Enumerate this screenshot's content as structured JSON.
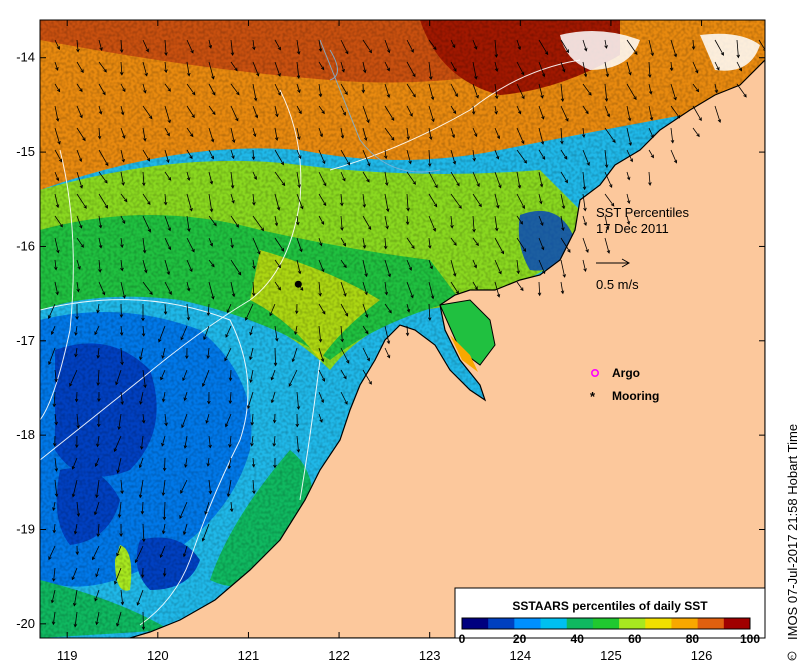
{
  "map": {
    "title": "SST Percentiles",
    "date": "17 Dec 2011",
    "lon_range": [
      118.7,
      126.7
    ],
    "lat_range": [
      -20.15,
      -13.6
    ],
    "x_ticks": [
      "119",
      "120",
      "121",
      "122",
      "123",
      "124",
      "125",
      "126"
    ],
    "y_ticks": [
      "-14",
      "-15",
      "-16",
      "-17",
      "-18",
      "-19",
      "-20"
    ],
    "land_color": "#fcc89c",
    "vector_scale_label": "0.5 m/s",
    "legend": {
      "argo_label": "Argo",
      "mooring_label": "Mooring"
    },
    "mooring": {
      "lon": 121.55,
      "lat": -16.4
    },
    "colorbar": {
      "title": "SSTAARS percentiles of daily SST",
      "tick_labels": [
        "0",
        "20",
        "40",
        "60",
        "80",
        "100"
      ],
      "colors": [
        "#00007f",
        "#0040c0",
        "#0090ff",
        "#00c0f0",
        "#10b860",
        "#20c830",
        "#a8e820",
        "#f0e000",
        "#f8a800",
        "#e06010",
        "#a00000"
      ]
    },
    "credit": "IMOS 07-Jul-2017 21:58 Hobart Time"
  }
}
